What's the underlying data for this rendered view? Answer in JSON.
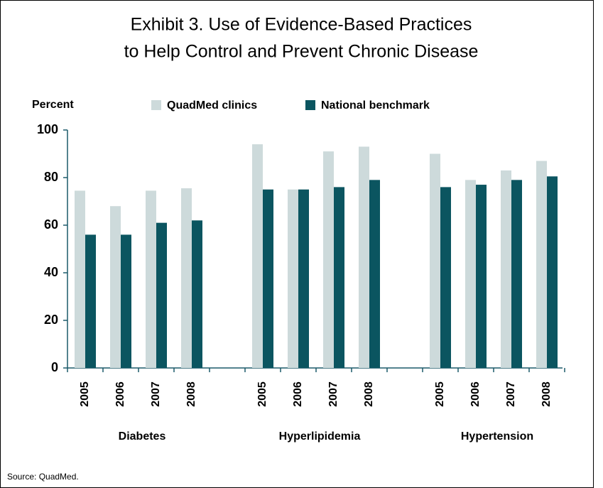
{
  "chart_data": {
    "type": "bar",
    "title": [
      "Exhibit 3. Use of Evidence-Based Practices",
      "to Help Control and Prevent Chronic Disease"
    ],
    "y_label": "Percent",
    "source": "Source: QuadMed.",
    "series": [
      {
        "name": "QuadMed clinics",
        "color": "#cddadb"
      },
      {
        "name": "National benchmark",
        "color": "#0b5560"
      }
    ],
    "groups": [
      {
        "name": "Diabetes",
        "categories": [
          "2005",
          "2006",
          "2007",
          "2008"
        ],
        "values": [
          [
            74.5,
            68,
            74.5,
            75.5
          ],
          [
            56,
            56,
            61,
            62
          ]
        ]
      },
      {
        "name": "Hyperlipidemia",
        "categories": [
          "2005",
          "2006",
          "2007",
          "2008"
        ],
        "values": [
          [
            94,
            75,
            91,
            93
          ],
          [
            75,
            75,
            76,
            79
          ]
        ]
      },
      {
        "name": "Hypertension",
        "categories": [
          "2005",
          "2006",
          "2007",
          "2008"
        ],
        "values": [
          [
            90,
            79,
            83,
            87
          ],
          [
            76,
            77,
            79,
            80.5
          ]
        ]
      }
    ],
    "ylim": [
      0,
      100
    ],
    "yticks": [
      0,
      20,
      40,
      60,
      80,
      100
    ]
  }
}
